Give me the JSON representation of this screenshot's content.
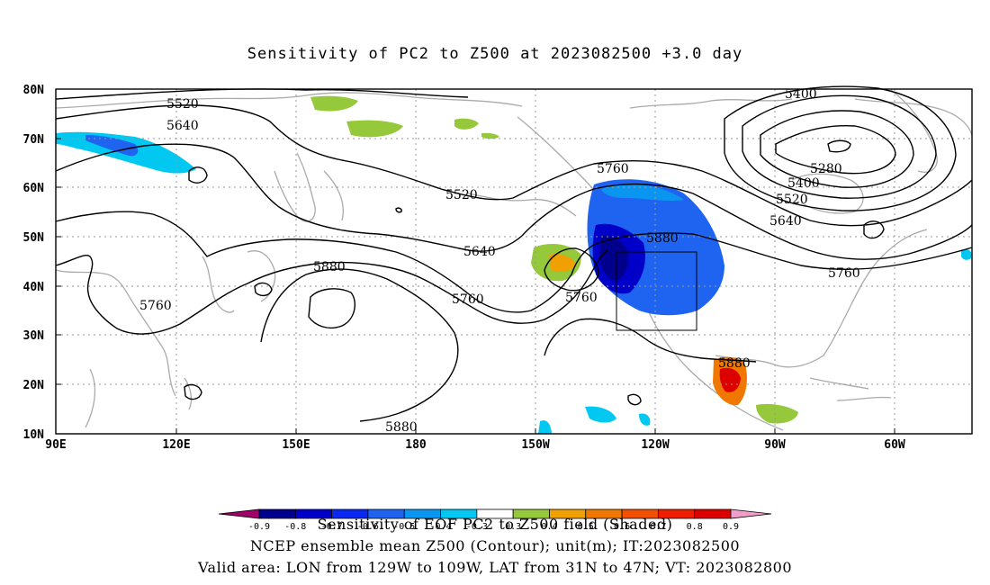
{
  "title": "Sensitivity of PC2 to Z500 at 2023082500 +3.0 day",
  "map": {
    "lat_labels": [
      "80N",
      "70N",
      "60N",
      "50N",
      "40N",
      "30N",
      "20N",
      "10N"
    ],
    "lon_labels": [
      "90E",
      "120E",
      "150E",
      "180",
      "150W",
      "120W",
      "90W",
      "60W"
    ],
    "contour_labels": [
      {
        "text": "5520"
      },
      {
        "text": "5640"
      },
      {
        "text": "5520"
      },
      {
        "text": "5640"
      },
      {
        "text": "5760"
      },
      {
        "text": "5760"
      },
      {
        "text": "5880"
      },
      {
        "text": "5760"
      },
      {
        "text": "5760"
      },
      {
        "text": "5880"
      },
      {
        "text": "5880"
      },
      {
        "text": "5880"
      },
      {
        "text": "5400"
      },
      {
        "text": "5280"
      },
      {
        "text": "5400"
      },
      {
        "text": "5520"
      },
      {
        "text": "5640"
      },
      {
        "text": "5760"
      }
    ],
    "valid_box": {
      "lon_min": "129W",
      "lon_max": "109W",
      "lat_min": "31N",
      "lat_max": "47N"
    }
  },
  "colorbar": {
    "colors": [
      "#a0006a",
      "#00008c",
      "#0000c8",
      "#0a28f0",
      "#1e64f0",
      "#0a96f0",
      "#00c8f0",
      "#ffffff",
      "#96c83c",
      "#f0a000",
      "#f07800",
      "#f05000",
      "#f01e00",
      "#dc0000",
      "#f0a0c8"
    ],
    "tick_labels": [
      "-0.9",
      "-0.8",
      "-0.7",
      "-0.6",
      "-0.5",
      "-0.4",
      "-0.3",
      "0.3",
      "0.4",
      "0.5",
      "0.6",
      "0.7",
      "0.8",
      "0.9"
    ]
  },
  "captions": {
    "line1": "Sensitivity of EOF PC2 to Z500 field (Shaded)",
    "line2": "NCEP ensemble mean Z500 (Contour); unit(m); IT:2023082500",
    "line3": "Valid area: LON from 129W to 109W, LAT from 31N to 47N; VT: 2023082800"
  }
}
